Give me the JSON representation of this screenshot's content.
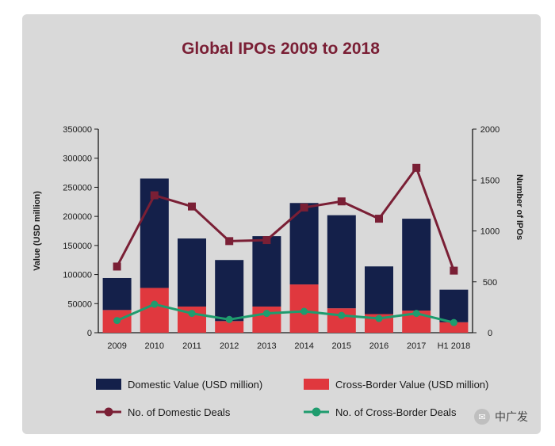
{
  "chart_data": {
    "type": "bar",
    "title": "Global IPOs 2009 to 2018",
    "categories": [
      "2009",
      "2010",
      "2011",
      "2012",
      "2013",
      "2014",
      "2015",
      "2016",
      "2017",
      "H1 2018"
    ],
    "series": [
      {
        "name": "Domestic Value (USD million)",
        "kind": "bar",
        "axis": "left",
        "color": "#14204a",
        "values": [
          55000,
          188000,
          117000,
          105000,
          121000,
          140000,
          160000,
          82000,
          158000,
          56000
        ]
      },
      {
        "name": "Cross-Border Value (USD million)",
        "kind": "bar",
        "axis": "left",
        "color": "#e0383e",
        "values": [
          39000,
          77000,
          45000,
          20000,
          45000,
          83000,
          42000,
          32000,
          38000,
          18000
        ]
      },
      {
        "name": "No. of Domestic Deals",
        "kind": "line",
        "axis": "right",
        "color": "#7a1f35",
        "values": [
          650,
          1350,
          1240,
          900,
          910,
          1230,
          1290,
          1120,
          1620,
          610
        ]
      },
      {
        "name": "No. of Cross-Border Deals",
        "kind": "line",
        "axis": "right",
        "color": "#1f9c6e",
        "values": [
          120,
          280,
          190,
          130,
          190,
          210,
          170,
          140,
          190,
          100
        ]
      }
    ],
    "ylabel": "Value (USD million)",
    "y2label": "Number of IPOs",
    "ylim": [
      0,
      350000
    ],
    "y2lim": [
      0,
      2000
    ],
    "yticks": [
      "0",
      "50000",
      "100000",
      "150000",
      "200000",
      "250000",
      "300000",
      "350000"
    ],
    "y2ticks": [
      "0",
      "500",
      "1000",
      "1500",
      "2000"
    ],
    "legend_position": "bottom",
    "grid": false
  },
  "watermark": {
    "text": "中广发",
    "icon": "chat-bubble-icon"
  }
}
